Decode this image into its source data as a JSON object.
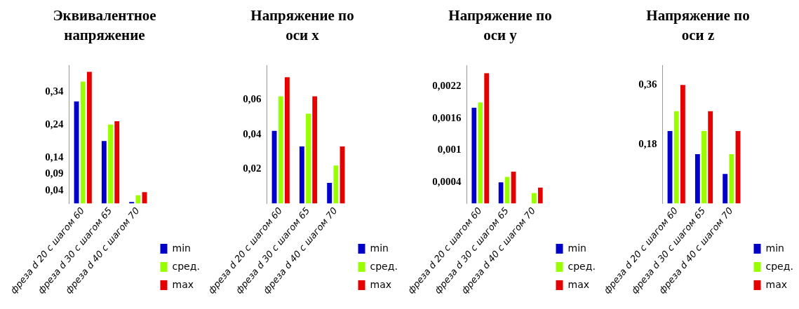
{
  "chart_data": [
    {
      "type": "bar",
      "title": "Эквивалентное напряжение",
      "categories": [
        "фреза d 20 с шагом 60",
        "фреза d 30 с шагом 65",
        "фреза d 40 с шагом 70"
      ],
      "series": [
        {
          "name": "min",
          "color": "#0000c8",
          "values": [
            0.31,
            0.19,
            0.005
          ]
        },
        {
          "name": "сред.",
          "color": "#99ff00",
          "values": [
            0.37,
            0.24,
            0.025
          ]
        },
        {
          "name": "max",
          "color": "#e60000",
          "values": [
            0.4,
            0.25,
            0.035
          ]
        }
      ],
      "ylim": [
        0,
        0.42
      ],
      "yticks": [
        {
          "value": 0.04,
          "label": "0,04"
        },
        {
          "value": 0.09,
          "label": "0,09"
        },
        {
          "value": 0.14,
          "label": "0,14"
        },
        {
          "value": 0.24,
          "label": "0,24"
        },
        {
          "value": 0.34,
          "label": "0,34"
        }
      ],
      "grid": false,
      "legend": "bottom right"
    },
    {
      "type": "bar",
      "title": "Напряжение по оси x",
      "categories": [
        "фреза d 20 с шагом 60",
        "фреза d 30 с шагом 65",
        "фреза d 40 с шагом 70"
      ],
      "series": [
        {
          "name": "min",
          "color": "#0000c8",
          "values": [
            0.042,
            0.033,
            0.012
          ]
        },
        {
          "name": "сред.",
          "color": "#99ff00",
          "values": [
            0.062,
            0.052,
            0.022
          ]
        },
        {
          "name": "max",
          "color": "#e60000",
          "values": [
            0.073,
            0.062,
            0.033
          ]
        }
      ],
      "ylim": [
        0,
        0.08
      ],
      "yticks": [
        {
          "value": 0.02,
          "label": "0,02"
        },
        {
          "value": 0.04,
          "label": "0,04"
        },
        {
          "value": 0.06,
          "label": "0,06"
        }
      ],
      "grid": false,
      "legend": "bottom right"
    },
    {
      "type": "bar",
      "title": "Напряжение по оси y",
      "categories": [
        "фреза d 20 с шагом 60",
        "фреза d 30 с шагом 65",
        "фреза d 40 с шагом 70"
      ],
      "series": [
        {
          "name": "min",
          "color": "#0000c8",
          "values": [
            0.0018,
            0.0004,
            null
          ]
        },
        {
          "name": "сред.",
          "color": "#99ff00",
          "values": [
            0.0019,
            0.0005,
            0.0002
          ]
        },
        {
          "name": "max",
          "color": "#e60000",
          "values": [
            0.00245,
            0.0006,
            0.0003
          ]
        }
      ],
      "ylim": [
        0,
        0.0026
      ],
      "yticks": [
        {
          "value": 0.0004,
          "label": "0,0004"
        },
        {
          "value": 0.001,
          "label": "0,001"
        },
        {
          "value": 0.0016,
          "label": "0,0016"
        },
        {
          "value": 0.0022,
          "label": "0,0022"
        }
      ],
      "grid": false,
      "legend": "bottom right"
    },
    {
      "type": "bar",
      "title": "Напряжение по оси z",
      "categories": [
        "фреза d 20 с шагом 60",
        "фреза d 30 с шагом 65",
        "фреза d 40 с шагом 70"
      ],
      "series": [
        {
          "name": "min",
          "color": "#0000c8",
          "values": [
            0.22,
            0.15,
            0.09
          ]
        },
        {
          "name": "сред.",
          "color": "#99ff00",
          "values": [
            0.28,
            0.22,
            0.15
          ]
        },
        {
          "name": "max",
          "color": "#e60000",
          "values": [
            0.36,
            0.28,
            0.22
          ]
        }
      ],
      "ylim": [
        0,
        0.42
      ],
      "yticks": [
        {
          "value": 0.18,
          "label": "0,18"
        },
        {
          "value": 0.36,
          "label": "0,36"
        }
      ],
      "grid": false,
      "legend": "bottom right"
    }
  ]
}
